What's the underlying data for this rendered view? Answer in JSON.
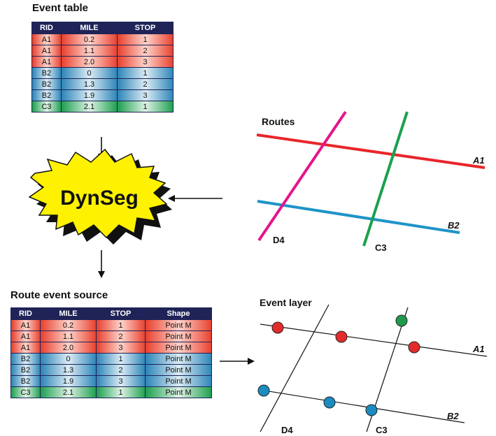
{
  "event_table": {
    "title": "Event table",
    "headers": [
      "RID",
      "MILE",
      "STOP"
    ],
    "rows": [
      {
        "rid": "A1",
        "mile": "0.2",
        "stop": "1",
        "color": "red"
      },
      {
        "rid": "A1",
        "mile": "1.1",
        "stop": "2",
        "color": "red"
      },
      {
        "rid": "A1",
        "mile": "2.0",
        "stop": "3",
        "color": "red"
      },
      {
        "rid": "B2",
        "mile": "0",
        "stop": "1",
        "color": "blue"
      },
      {
        "rid": "B2",
        "mile": "1.3",
        "stop": "2",
        "color": "blue"
      },
      {
        "rid": "B2",
        "mile": "1.9",
        "stop": "3",
        "color": "blue"
      },
      {
        "rid": "C3",
        "mile": "2.1",
        "stop": "1",
        "color": "green"
      }
    ]
  },
  "dynseg": {
    "label": "DynSeg"
  },
  "routes": {
    "title": "Routes",
    "labels": {
      "a1": "A1",
      "b2": "B2",
      "c3": "C3",
      "d4": "D4"
    }
  },
  "route_event_source": {
    "title": "Route event source",
    "headers": [
      "RID",
      "MILE",
      "STOP",
      "Shape"
    ],
    "rows": [
      {
        "rid": "A1",
        "mile": "0.2",
        "stop": "1",
        "shape": "Point M",
        "color": "red"
      },
      {
        "rid": "A1",
        "mile": "1.1",
        "stop": "2",
        "shape": "Point M",
        "color": "red"
      },
      {
        "rid": "A1",
        "mile": "2.0",
        "stop": "3",
        "shape": "Point M",
        "color": "red"
      },
      {
        "rid": "B2",
        "mile": "0",
        "stop": "1",
        "shape": "Point M",
        "color": "blue"
      },
      {
        "rid": "B2",
        "mile": "1.3",
        "stop": "2",
        "shape": "Point M",
        "color": "blue"
      },
      {
        "rid": "B2",
        "mile": "1.9",
        "stop": "3",
        "shape": "Point M",
        "color": "blue"
      },
      {
        "rid": "C3",
        "mile": "2.1",
        "stop": "1",
        "shape": "Point M",
        "color": "green"
      }
    ]
  },
  "event_layer": {
    "title": "Event layer",
    "labels": {
      "a1": "A1",
      "b2": "B2",
      "c3": "C3",
      "d4": "D4"
    }
  },
  "colors": {
    "route_a1": "#e8262b",
    "route_b2": "#1e94c8",
    "route_c3": "#1aa14e",
    "route_d4": "#e4168c",
    "point_red": "#e42b2b",
    "point_blue": "#1b8cc0",
    "point_green": "#1f9a4a",
    "table_header": "#1f2357",
    "dynseg_fill": "#fff200"
  }
}
